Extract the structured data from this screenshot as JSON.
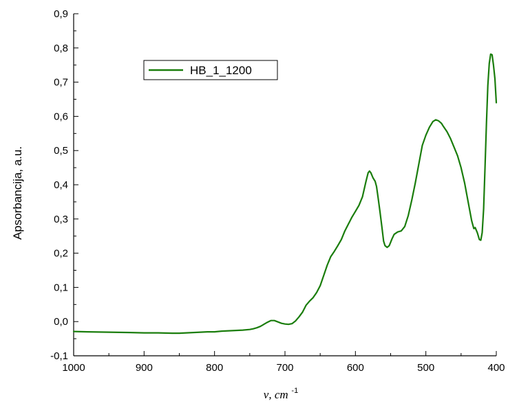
{
  "chart_data": {
    "type": "line",
    "title": "",
    "xlabel": "ν, cm",
    "xlabel_superscript": "-1",
    "ylabel": "Apsorbancija, a.u.",
    "xlim": [
      1000,
      400
    ],
    "ylim": [
      -0.1,
      0.9
    ],
    "x_reversed": true,
    "grid": false,
    "legend_position": "top-left",
    "x_ticks": [
      {
        "value": 1000,
        "label": "1000"
      },
      {
        "value": 900,
        "label": "900"
      },
      {
        "value": 800,
        "label": "800"
      },
      {
        "value": 700,
        "label": "700"
      },
      {
        "value": 600,
        "label": "600"
      },
      {
        "value": 500,
        "label": "500"
      },
      {
        "value": 400,
        "label": "400"
      }
    ],
    "y_ticks": [
      {
        "value": -0.1,
        "label": "-0,1"
      },
      {
        "value": 0.0,
        "label": "0,0"
      },
      {
        "value": 0.1,
        "label": "0,1"
      },
      {
        "value": 0.2,
        "label": "0,2"
      },
      {
        "value": 0.3,
        "label": "0,3"
      },
      {
        "value": 0.4,
        "label": "0,4"
      },
      {
        "value": 0.5,
        "label": "0,5"
      },
      {
        "value": 0.6,
        "label": "0,6"
      },
      {
        "value": 0.7,
        "label": "0,7"
      },
      {
        "value": 0.8,
        "label": "0,8"
      },
      {
        "value": 0.9,
        "label": "0,9"
      }
    ],
    "series": [
      {
        "name": "HB_1_1200",
        "color": "#1a7d0c",
        "x": [
          1000,
          980,
          950,
          920,
          900,
          880,
          860,
          850,
          840,
          830,
          820,
          810,
          800,
          790,
          780,
          770,
          760,
          750,
          745,
          740,
          735,
          730,
          725,
          720,
          715,
          710,
          705,
          700,
          695,
          690,
          685,
          680,
          675,
          670,
          665,
          660,
          655,
          650,
          645,
          640,
          635,
          630,
          625,
          620,
          615,
          610,
          605,
          600,
          595,
          590,
          585,
          582,
          580,
          578,
          575,
          572,
          570,
          568,
          565,
          562,
          560,
          558,
          555,
          552,
          550,
          548,
          545,
          540,
          535,
          530,
          525,
          520,
          515,
          510,
          505,
          500,
          495,
          490,
          486,
          482,
          478,
          475,
          470,
          465,
          460,
          455,
          450,
          445,
          440,
          435,
          432,
          430,
          427,
          424,
          422,
          420,
          418,
          416,
          414,
          412,
          410,
          408,
          406,
          404,
          402,
          400
        ],
        "y": [
          -0.029,
          -0.03,
          -0.031,
          -0.032,
          -0.033,
          -0.033,
          -0.034,
          -0.034,
          -0.033,
          -0.032,
          -0.031,
          -0.03,
          -0.03,
          -0.028,
          -0.027,
          -0.026,
          -0.025,
          -0.023,
          -0.021,
          -0.018,
          -0.014,
          -0.008,
          -0.002,
          0.003,
          0.003,
          -0.001,
          -0.005,
          -0.007,
          -0.008,
          -0.006,
          0.002,
          0.014,
          0.028,
          0.048,
          0.06,
          0.07,
          0.085,
          0.105,
          0.135,
          0.165,
          0.19,
          0.205,
          0.222,
          0.24,
          0.265,
          0.285,
          0.305,
          0.322,
          0.34,
          0.365,
          0.41,
          0.435,
          0.44,
          0.435,
          0.42,
          0.41,
          0.395,
          0.365,
          0.32,
          0.27,
          0.235,
          0.222,
          0.217,
          0.222,
          0.232,
          0.242,
          0.255,
          0.262,
          0.265,
          0.278,
          0.31,
          0.355,
          0.405,
          0.46,
          0.515,
          0.545,
          0.568,
          0.585,
          0.59,
          0.587,
          0.58,
          0.57,
          0.555,
          0.535,
          0.51,
          0.485,
          0.45,
          0.405,
          0.35,
          0.295,
          0.272,
          0.275,
          0.26,
          0.24,
          0.238,
          0.26,
          0.33,
          0.45,
          0.58,
          0.69,
          0.755,
          0.782,
          0.78,
          0.75,
          0.71,
          0.64
        ]
      }
    ]
  }
}
